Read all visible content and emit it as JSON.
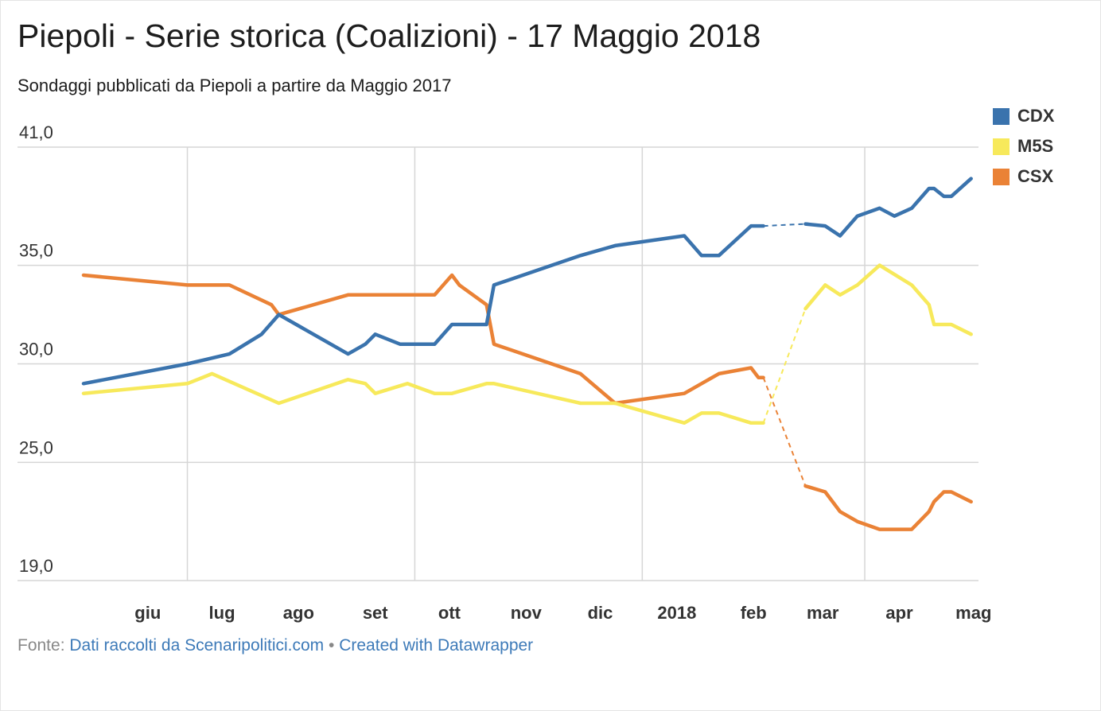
{
  "header": {
    "title": "Piepoli - Serie storica (Coalizioni) - 17 Maggio 2018",
    "subtitle": "Sondaggi pubblicati da Piepoli a partire da Maggio 2017"
  },
  "footer": {
    "source_prefix": "Fonte: ",
    "source_link": "Dati raccolti da Scenaripolitici.com",
    "separator": "•",
    "credit_link": "Created with Datawrapper"
  },
  "colors": {
    "CDX": "#3a73ad",
    "M5S": "#f7e95b",
    "CSX": "#ea8236",
    "grid": "#d6d6d6",
    "axis_text": "#333333"
  },
  "chart_data": {
    "type": "line",
    "title": "Piepoli - Serie storica (Coalizioni) - 17 Maggio 2018",
    "subtitle": "Sondaggi pubblicati da Piepoli a partire da Maggio 2017",
    "xlabel": "",
    "ylabel": "",
    "ylim": [
      19.0,
      41.0
    ],
    "yticks": [
      "41,0",
      "35,0",
      "30,0",
      "25,0",
      "19,0"
    ],
    "ytick_values": [
      41,
      35,
      30,
      25,
      19
    ],
    "xlim": [
      "2017-05-20",
      "2018-05-17"
    ],
    "xticks": [
      {
        "label": "giu",
        "date": "2017-06-15"
      },
      {
        "label": "lug",
        "date": "2017-07-15"
      },
      {
        "label": "ago",
        "date": "2017-08-15"
      },
      {
        "label": "set",
        "date": "2017-09-15"
      },
      {
        "label": "ott",
        "date": "2017-10-15"
      },
      {
        "label": "nov",
        "date": "2017-11-15"
      },
      {
        "label": "dic",
        "date": "2017-12-15"
      },
      {
        "label": "2018",
        "date": "2018-01-15"
      },
      {
        "label": "feb",
        "date": "2018-02-15"
      },
      {
        "label": "mar",
        "date": "2018-03-15"
      },
      {
        "label": "apr",
        "date": "2018-04-15"
      },
      {
        "label": "mag",
        "date": "2018-05-15"
      }
    ],
    "vgrid_dates": [
      "2017-07-01",
      "2017-10-01",
      "2018-01-01",
      "2018-04-01"
    ],
    "grid": true,
    "legend": "top-right",
    "dashed_gap": [
      "2018-02-19",
      "2018-03-08"
    ],
    "series": [
      {
        "name": "CDX",
        "points": [
          [
            "2017-05-20",
            29.0
          ],
          [
            "2017-07-01",
            30.0
          ],
          [
            "2017-07-18",
            30.5
          ],
          [
            "2017-07-31",
            31.5
          ],
          [
            "2017-08-07",
            32.5
          ],
          [
            "2017-09-04",
            30.5
          ],
          [
            "2017-09-11",
            31.0
          ],
          [
            "2017-09-15",
            31.5
          ],
          [
            "2017-09-25",
            31.0
          ],
          [
            "2017-10-09",
            31.0
          ],
          [
            "2017-10-16",
            32.0
          ],
          [
            "2017-10-30",
            32.0
          ],
          [
            "2017-11-02",
            34.0
          ],
          [
            "2017-12-07",
            35.5
          ],
          [
            "2017-12-21",
            36.0
          ],
          [
            "2018-01-18",
            36.5
          ],
          [
            "2018-01-25",
            35.5
          ],
          [
            "2018-02-01",
            35.5
          ],
          [
            "2018-02-14",
            37.0
          ],
          [
            "2018-02-19",
            37.0
          ],
          [
            "2018-03-08",
            37.1
          ],
          [
            "2018-03-16",
            37.0
          ],
          [
            "2018-03-22",
            36.5
          ],
          [
            "2018-03-29",
            37.5
          ],
          [
            "2018-04-07",
            37.9
          ],
          [
            "2018-04-13",
            37.5
          ],
          [
            "2018-04-20",
            37.9
          ],
          [
            "2018-04-27",
            38.9
          ],
          [
            "2018-04-29",
            38.9
          ],
          [
            "2018-05-03",
            38.5
          ],
          [
            "2018-05-06",
            38.5
          ],
          [
            "2018-05-14",
            39.4
          ]
        ]
      },
      {
        "name": "M5S",
        "points": [
          [
            "2017-05-20",
            28.5
          ],
          [
            "2017-07-01",
            29.0
          ],
          [
            "2017-07-11",
            29.5
          ],
          [
            "2017-08-07",
            28.0
          ],
          [
            "2017-09-04",
            29.2
          ],
          [
            "2017-09-11",
            29.0
          ],
          [
            "2017-09-15",
            28.5
          ],
          [
            "2017-09-28",
            29.0
          ],
          [
            "2017-10-09",
            28.5
          ],
          [
            "2017-10-16",
            28.5
          ],
          [
            "2017-10-30",
            29.0
          ],
          [
            "2017-11-02",
            29.0
          ],
          [
            "2017-12-07",
            28.0
          ],
          [
            "2017-12-21",
            28.0
          ],
          [
            "2018-01-18",
            27.0
          ],
          [
            "2018-01-25",
            27.5
          ],
          [
            "2018-02-01",
            27.5
          ],
          [
            "2018-02-14",
            27.0
          ],
          [
            "2018-02-19",
            27.0
          ],
          [
            "2018-03-08",
            32.8
          ],
          [
            "2018-03-16",
            34.0
          ],
          [
            "2018-03-22",
            33.5
          ],
          [
            "2018-03-29",
            34.0
          ],
          [
            "2018-04-07",
            35.0
          ],
          [
            "2018-04-20",
            34.0
          ],
          [
            "2018-04-27",
            33.0
          ],
          [
            "2018-04-29",
            32.0
          ],
          [
            "2018-05-06",
            32.0
          ],
          [
            "2018-05-14",
            31.5
          ]
        ]
      },
      {
        "name": "CSX",
        "points": [
          [
            "2017-05-20",
            34.5
          ],
          [
            "2017-07-01",
            34.0
          ],
          [
            "2017-07-18",
            34.0
          ],
          [
            "2017-08-04",
            33.0
          ],
          [
            "2017-08-07",
            32.5
          ],
          [
            "2017-09-04",
            33.5
          ],
          [
            "2017-09-25",
            33.5
          ],
          [
            "2017-10-09",
            33.5
          ],
          [
            "2017-10-16",
            34.5
          ],
          [
            "2017-10-19",
            34.0
          ],
          [
            "2017-10-30",
            33.0
          ],
          [
            "2017-11-02",
            31.0
          ],
          [
            "2017-12-07",
            29.5
          ],
          [
            "2017-12-21",
            28.0
          ],
          [
            "2018-01-18",
            28.5
          ],
          [
            "2018-01-25",
            29.0
          ],
          [
            "2018-02-01",
            29.5
          ],
          [
            "2018-02-14",
            29.8
          ],
          [
            "2018-02-17",
            29.3
          ],
          [
            "2018-02-19",
            29.3
          ],
          [
            "2018-03-08",
            23.8
          ],
          [
            "2018-03-16",
            23.5
          ],
          [
            "2018-03-22",
            22.5
          ],
          [
            "2018-03-29",
            22.0
          ],
          [
            "2018-04-07",
            21.6
          ],
          [
            "2018-04-20",
            21.6
          ],
          [
            "2018-04-27",
            22.5
          ],
          [
            "2018-04-29",
            23.0
          ],
          [
            "2018-05-03",
            23.5
          ],
          [
            "2018-05-06",
            23.5
          ],
          [
            "2018-05-14",
            23.0
          ]
        ]
      }
    ]
  }
}
